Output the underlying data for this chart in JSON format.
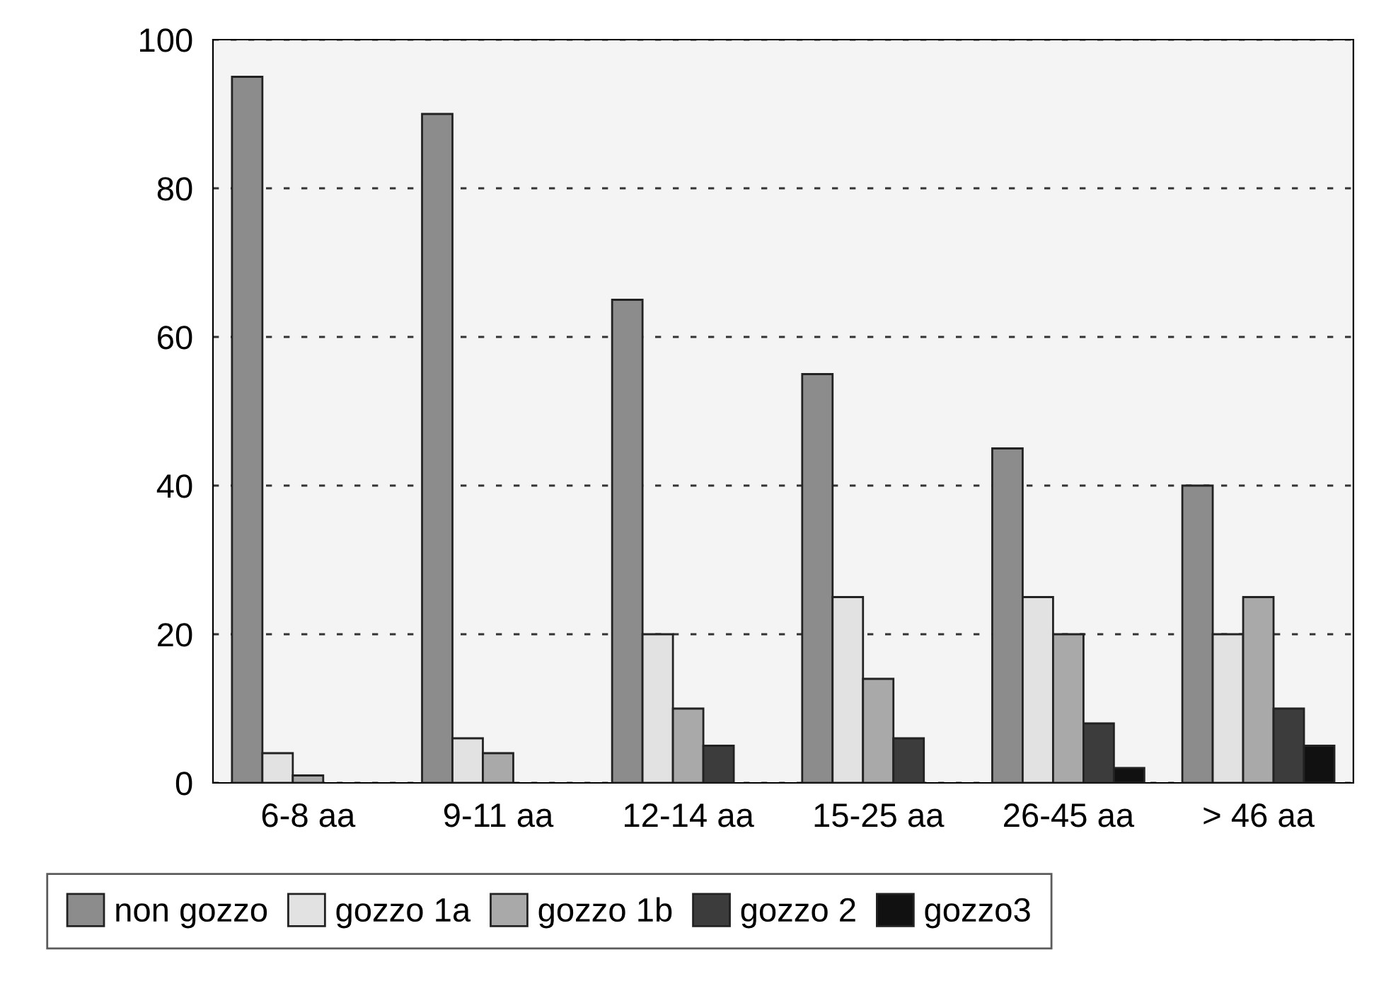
{
  "chart_data": {
    "type": "bar",
    "categories": [
      "6-8 aa",
      "9-11 aa",
      "12-14 aa",
      "15-25 aa",
      "26-45 aa",
      "> 46 aa"
    ],
    "series": [
      {
        "name": "non gozzo",
        "color": "#8c8c8c",
        "values": [
          95,
          90,
          65,
          55,
          45,
          40
        ]
      },
      {
        "name": "gozzo 1a",
        "color": "#e2e2e2",
        "values": [
          4,
          6,
          20,
          25,
          25,
          20
        ]
      },
      {
        "name": "gozzo 1b",
        "color": "#a9a9a9",
        "values": [
          1,
          4,
          10,
          14,
          20,
          25
        ]
      },
      {
        "name": "gozzo 2",
        "color": "#3c3c3c",
        "values": [
          null,
          null,
          5,
          6,
          8,
          10
        ]
      },
      {
        "name": "gozzo3",
        "color": "#111111",
        "values": [
          null,
          null,
          null,
          null,
          2,
          5
        ]
      }
    ],
    "ylim": [
      0,
      100
    ],
    "yticks": [
      0,
      20,
      40,
      60,
      80,
      100
    ],
    "grid": "y",
    "legend": "bottom left"
  }
}
